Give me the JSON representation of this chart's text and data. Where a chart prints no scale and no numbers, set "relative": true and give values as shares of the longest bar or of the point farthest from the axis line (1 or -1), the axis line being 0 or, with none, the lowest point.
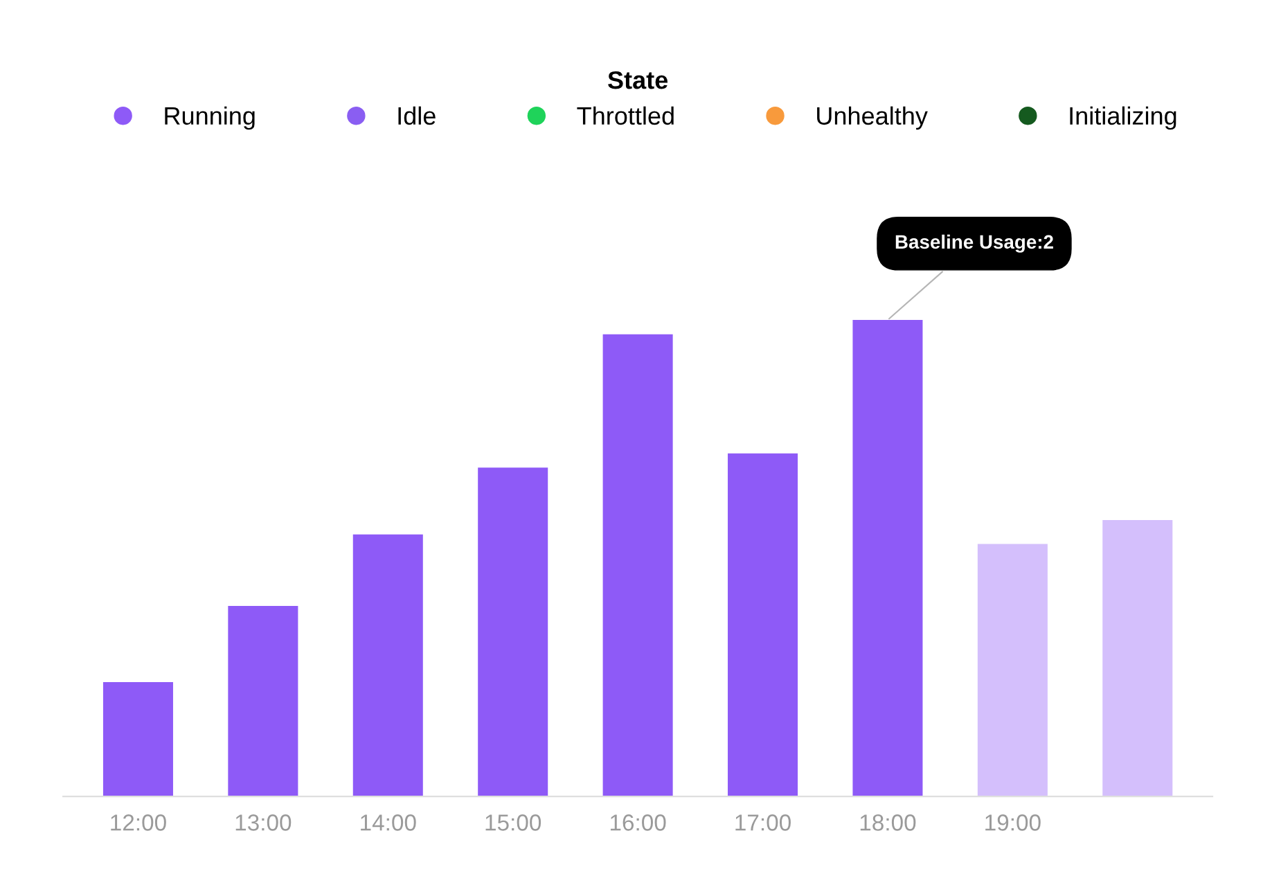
{
  "chart_data": {
    "type": "bar",
    "categories": [
      "12:00",
      "13:00",
      "14:00",
      "15:00",
      "16:00",
      "17:00",
      "18:00",
      "19:00",
      null
    ],
    "relative": true,
    "stacked": true,
    "series": [
      {
        "name": "Running",
        "color": "#8e5af7",
        "values": [
          0.24,
          0.4,
          0.55,
          0.69,
          0.97,
          0.72,
          1,
          null,
          null
        ]
      },
      {
        "name": "Idle",
        "color": "#8a5ef2",
        "values": [
          null,
          null,
          null,
          null,
          null,
          null,
          null,
          null,
          null
        ]
      },
      {
        "name": "Throttled",
        "color": "#1fd35a",
        "values": [
          null,
          null,
          null,
          null,
          null,
          null,
          null,
          null,
          null
        ]
      },
      {
        "name": "Unhealthy",
        "color": "#f89a3c",
        "values": [
          null,
          null,
          null,
          null,
          null,
          null,
          null,
          null,
          null
        ]
      },
      {
        "name": "Initializing",
        "color": "#155a1f",
        "values": [
          null,
          null,
          null,
          null,
          null,
          null,
          null,
          null,
          null
        ]
      },
      {
        "color": "#d4bffc",
        "values": [
          null,
          null,
          null,
          null,
          null,
          null,
          null,
          0.53,
          0.58
        ]
      }
    ],
    "legend_title": "State",
    "legend": "top",
    "annotations": [
      {
        "text": "Baseline Usage:2",
        "x": "18:00",
        "y": 1
      }
    ]
  }
}
